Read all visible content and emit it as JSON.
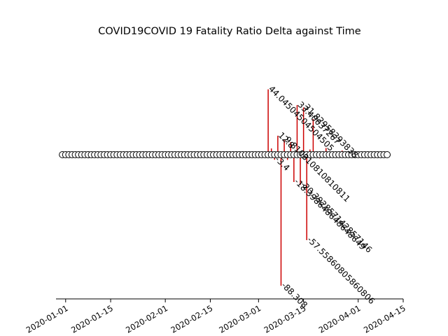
{
  "chart_data": {
    "type": "timeline-stem",
    "title": "COVID19COVID 19 Fatality Ratio Delta against Time",
    "xlabel": "",
    "ylabel": "",
    "x_ticks": [
      "2020-01-01",
      "2020-01-15",
      "2020-02-01",
      "2020-02-15",
      "2020-03-01",
      "2020-03-15",
      "2020-04-01",
      "2020-04-15"
    ],
    "xlim": [
      "2019-12-29",
      "2020-04-15"
    ],
    "ylim": [
      -100,
      75
    ],
    "stem_color": "#cc0000",
    "marker_fill": "#ffffff",
    "marker_dates": {
      "start": "2019-12-31",
      "end": "2020-04-10"
    },
    "events": [
      {
        "date": "2020-03-04",
        "value": 44.04504504504505,
        "label": "44.04504504504505"
      },
      {
        "date": "2020-03-05",
        "value": 4.2,
        "label": ""
      },
      {
        "date": "2020-03-06",
        "value": -3.4,
        "label": "-3.4"
      },
      {
        "date": "2020-03-07",
        "value": 12.8,
        "label": "12.8"
      },
      {
        "date": "2020-03-08",
        "value": -88.30813,
        "label": "-88.308"
      },
      {
        "date": "2020-03-09",
        "value": 9.81081081081081,
        "label": "9.810810810810811"
      },
      {
        "date": "2020-03-10",
        "value": -3.5,
        "label": ""
      },
      {
        "date": "2020-03-11",
        "value": 8.5,
        "label": ""
      },
      {
        "date": "2020-03-12",
        "value": -18.39864864864865,
        "label": "-18.398648648648649"
      },
      {
        "date": "2020-03-13",
        "value": 33.40037267,
        "label": "33.40037267"
      },
      {
        "date": "2020-03-14",
        "value": -20.392857142857146,
        "label": "-20.392857142857146"
      },
      {
        "date": "2020-03-15",
        "value": 31.82958393838,
        "label": "31.82958393838"
      },
      {
        "date": "2020-03-16",
        "value": -57.55860805860806,
        "label": "-57.55860805860806"
      },
      {
        "date": "2020-03-17",
        "value": 3.5,
        "label": ""
      },
      {
        "date": "2020-03-18",
        "value": 24.0,
        "label": ""
      },
      {
        "date": "2020-03-20",
        "value": -2.5,
        "label": ""
      },
      {
        "date": "2020-03-22",
        "value": 4.5,
        "label": ""
      },
      {
        "date": "2020-03-24",
        "value": -2.0,
        "label": ""
      },
      {
        "date": "2020-03-27",
        "value": 2.8,
        "label": ""
      },
      {
        "date": "2020-03-31",
        "value": -1.5,
        "label": ""
      },
      {
        "date": "2020-04-03",
        "value": 1.5,
        "label": ""
      },
      {
        "date": "2020-04-07",
        "value": -0.8,
        "label": ""
      }
    ]
  }
}
